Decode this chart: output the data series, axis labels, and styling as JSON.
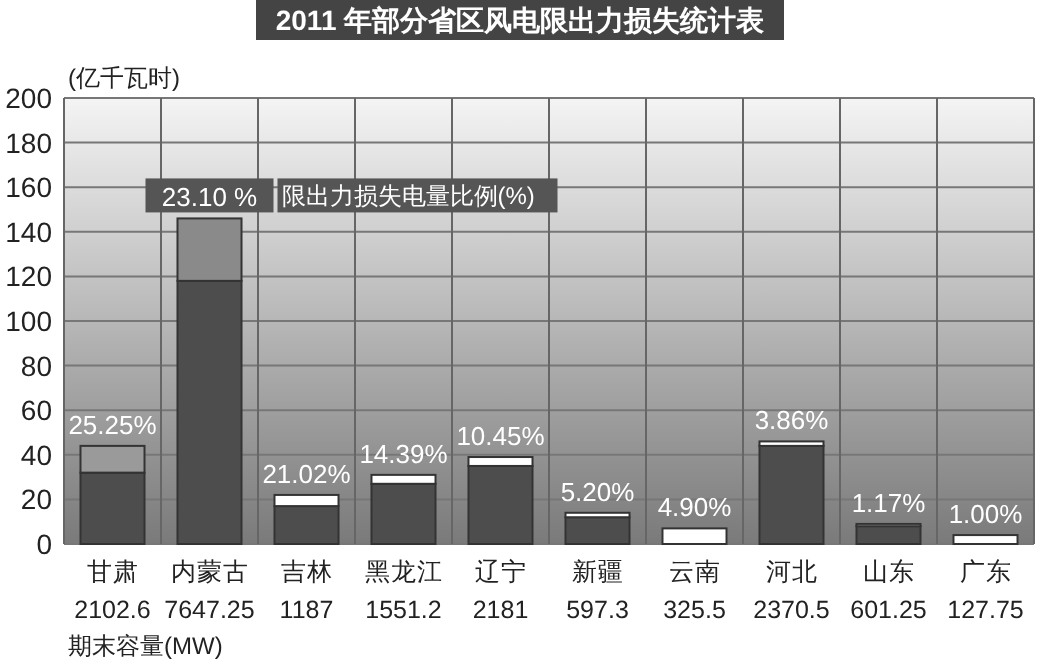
{
  "chart_data": {
    "type": "bar",
    "stacked": true,
    "title": "2011 年部分省区风电限出力损失统计表",
    "ylabel": "(亿千瓦时)",
    "categories": [
      "甘肃\n2102.6",
      "内蒙古\n7647.25",
      "吉林\n1187",
      "黑龙江\n1551.2",
      "辽宁\n2181",
      "新疆\n597.3",
      "云南\n325.5",
      "河北\n2370.5",
      "山东\n601.25",
      "广东\n127.75"
    ],
    "series": [
      {
        "color": "#4d4d4d",
        "values": [
          32,
          118,
          17,
          27,
          35,
          12,
          0,
          44,
          8,
          0
        ]
      },
      {
        "colors": [
          "#9a9a9a",
          "#8a8a8a",
          "#ffffff",
          "#ffffff",
          "#ffffff",
          "#ffffff",
          "#ffffff",
          "#ffffff",
          "#ffffff",
          "#ffffff"
        ],
        "values": [
          12,
          28,
          5,
          4,
          4,
          2,
          7,
          2,
          1,
          4
        ]
      }
    ],
    "ylim": [
      0,
      200
    ],
    "yticks": [
      0,
      20,
      40,
      60,
      80,
      100,
      120,
      140,
      160,
      180,
      200
    ],
    "grid": true,
    "annotations": [
      {
        "text": "25.25%",
        "x": "甘肃\n2102.6",
        "y": 44
      },
      {
        "text": "23.10 %",
        "x": "内蒙古\n7647.25",
        "y": 146
      },
      {
        "text": "21.02%",
        "x": "吉林\n1187",
        "y": 22
      },
      {
        "text": "14.39%",
        "x": "黑龙江\n1551.2",
        "y": 31
      },
      {
        "text": "10.45%",
        "x": "辽宁\n2181",
        "y": 39
      },
      {
        "text": "5.20%",
        "x": "新疆\n597.3",
        "y": 14
      },
      {
        "text": "4.90%",
        "x": "云南\n325.5",
        "y": 7
      },
      {
        "text": "3.86%",
        "x": "河北\n2370.5",
        "y": 46
      },
      {
        "text": "1.17%",
        "x": "山东\n601.25",
        "y": 9
      },
      {
        "text": "1.00%",
        "x": "广东\n127.75",
        "y": 4
      },
      "限出力损失电量比例(%)",
      "期末容量(MW)"
    ]
  }
}
